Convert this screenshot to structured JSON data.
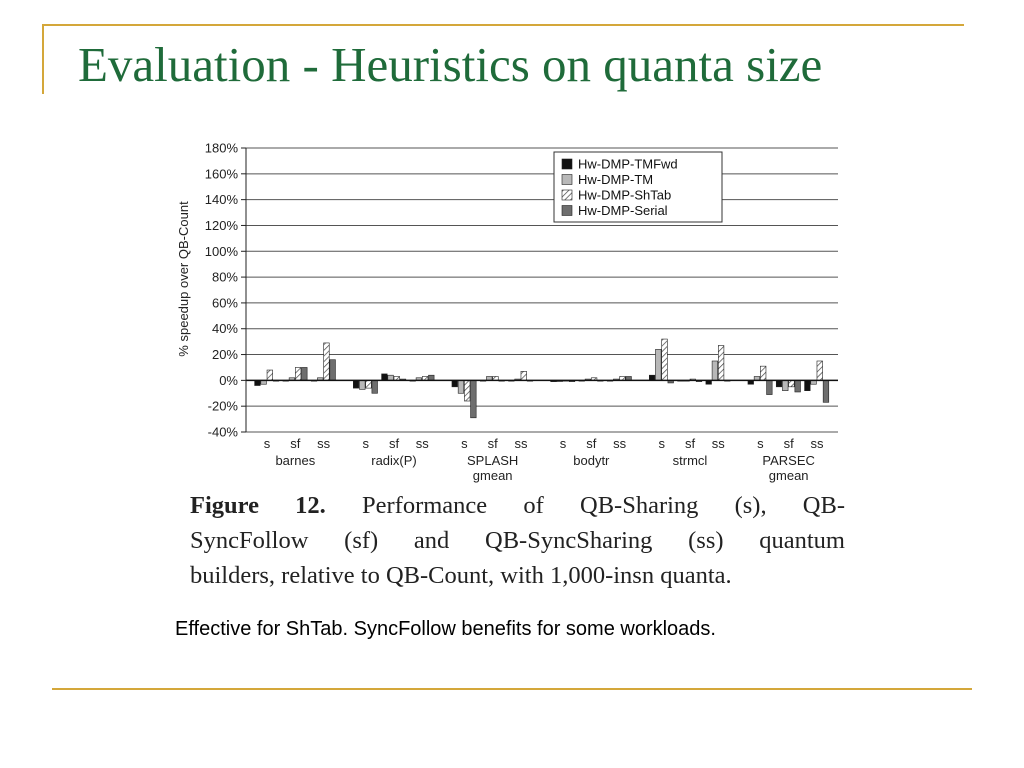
{
  "slide": {
    "title": "Evaluation -  Heuristics on quanta size",
    "note": "Effective for ShTab. SyncFollow benefits for some workloads.",
    "accent_color": "#d4a73a",
    "title_color": "#1f6b3a"
  },
  "caption": {
    "label": "Figure 12.",
    "line1": "Performance of QB-Sharing (s), QB-",
    "line2": "SyncFollow (sf) and QB-SyncSharing (ss) quantum",
    "line3": "builders, relative to QB-Count, with 1,000-insn quanta."
  },
  "chart_data": {
    "type": "bar",
    "ylabel": "% speedup over QB-Count",
    "ylim": [
      -40,
      180
    ],
    "yticks": [
      -40,
      -20,
      0,
      20,
      40,
      60,
      80,
      100,
      120,
      140,
      160,
      180
    ],
    "ytick_labels": [
      "-40%",
      "-20%",
      "0%",
      "20%",
      "40%",
      "60%",
      "80%",
      "100%",
      "120%",
      "140%",
      "160%",
      "180%"
    ],
    "grid": true,
    "legend_position": "top-right",
    "subgroups": [
      "s",
      "sf",
      "ss"
    ],
    "groups": [
      {
        "label": "barnes"
      },
      {
        "label": "radix(P)"
      },
      {
        "label": "SPLASH\ngmean"
      },
      {
        "label": "bodytr"
      },
      {
        "label": "strmcl"
      },
      {
        "label": "PARSEC\ngmean"
      }
    ],
    "series": [
      {
        "name": "Hw-DMP-TMFwd",
        "fill": "#111111",
        "values": [
          [
            -4,
            0,
            0
          ],
          [
            -6,
            5,
            0
          ],
          [
            -5,
            0,
            0
          ],
          [
            -1,
            0,
            0
          ],
          [
            4,
            0,
            -3
          ],
          [
            -3,
            -5,
            -8
          ]
        ]
      },
      {
        "name": "Hw-DMP-TM",
        "fill": "#b8b8b8",
        "values": [
          [
            -3,
            2,
            2
          ],
          [
            -7,
            4,
            2
          ],
          [
            -10,
            3,
            1
          ],
          [
            -1,
            1,
            1
          ],
          [
            24,
            0,
            15
          ],
          [
            3,
            -8,
            -3
          ]
        ]
      },
      {
        "name": "Hw-DMP-ShTab",
        "fill": "hatch",
        "values": [
          [
            8,
            10,
            29
          ],
          [
            -6,
            3,
            3
          ],
          [
            -16,
            3,
            7
          ],
          [
            0,
            2,
            3
          ],
          [
            32,
            1,
            27
          ],
          [
            11,
            -5,
            15
          ]
        ]
      },
      {
        "name": "Hw-DMP-Serial",
        "fill": "#6e6e6e",
        "values": [
          [
            0,
            10,
            16
          ],
          [
            -10,
            1,
            4
          ],
          [
            -29,
            0,
            0
          ],
          [
            -1,
            0,
            3
          ],
          [
            -2,
            -1,
            0
          ],
          [
            -11,
            -9,
            -17
          ]
        ]
      }
    ]
  }
}
